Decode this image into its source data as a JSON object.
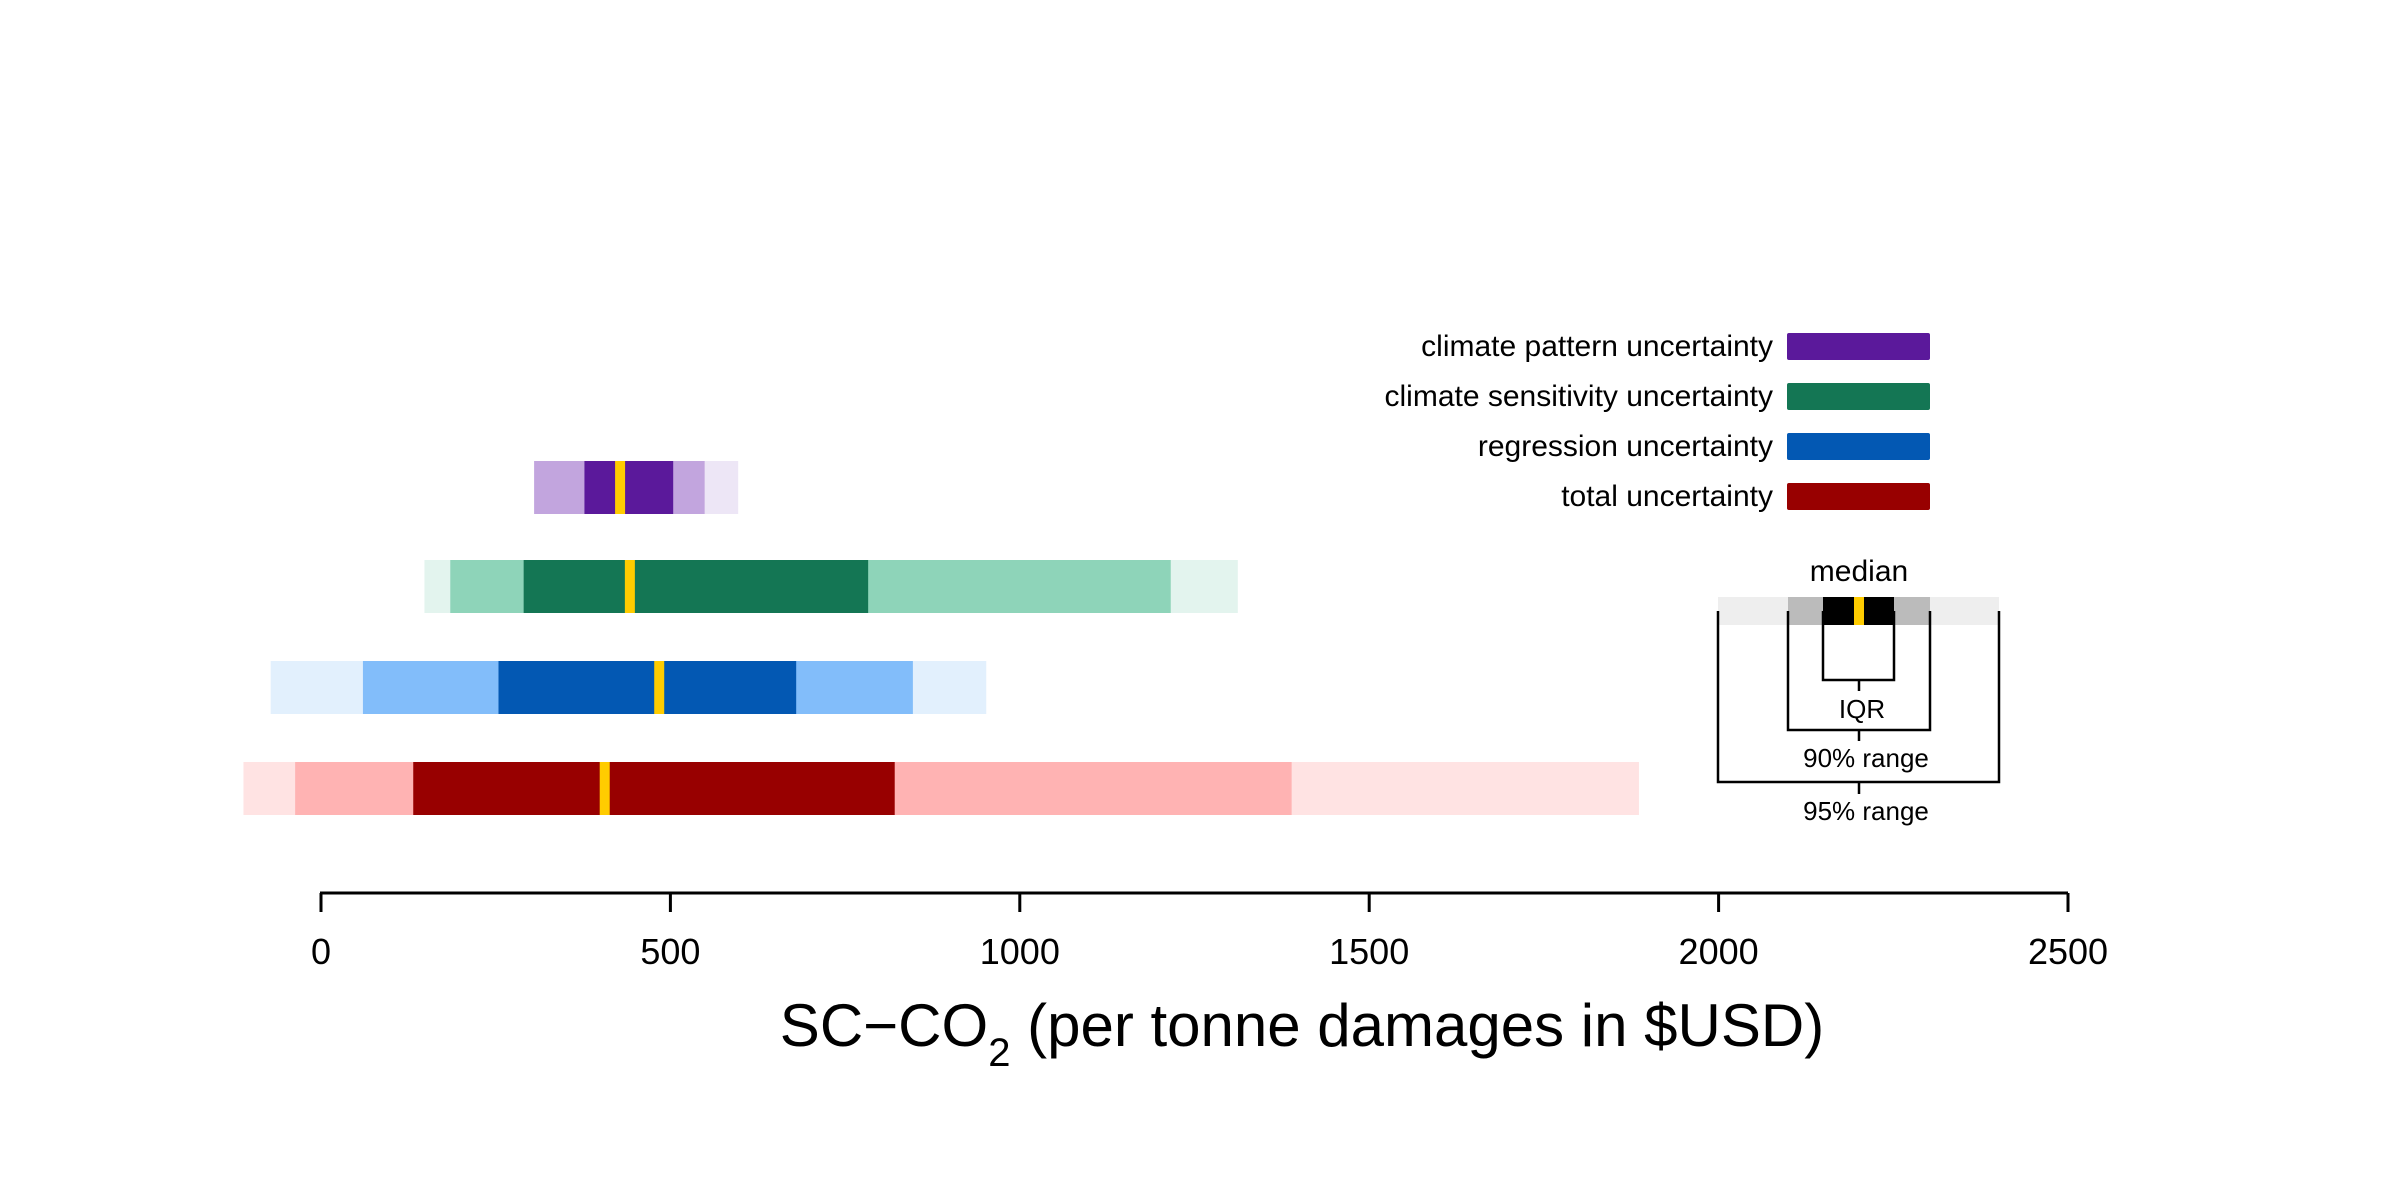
{
  "chart_data": {
    "type": "range-bar",
    "xlabel_main": "SC−CO",
    "xlabel_sub": "2",
    "xlabel_rest": " (per tonne damages in $USD)",
    "xlim": [
      0,
      2500
    ],
    "xticks": [
      0,
      500,
      1000,
      1500,
      2000,
      2500
    ],
    "xtick_labels": [
      "0",
      "500",
      "1000",
      "1500",
      "2000",
      "2500"
    ],
    "grid": false,
    "series": [
      {
        "name": "climate pattern uncertainty",
        "color": "#5b199b",
        "light": "#c2a5de",
        "lightest": "#ede6f6",
        "p025": 305,
        "p05": 305,
        "p25": 377,
        "median": 428,
        "p75": 504,
        "p95": 549,
        "p975": 597
      },
      {
        "name": "climate sensitivity uncertainty",
        "color": "#147654",
        "light": "#8ed4b9",
        "lightest": "#e3f4ee",
        "p025": 148,
        "p05": 185,
        "p25": 290,
        "median": 442,
        "p75": 783,
        "p95": 1216,
        "p975": 1312
      },
      {
        "name": "regression uncertainty",
        "color": "#0358b3",
        "light": "#82bdfa",
        "lightest": "#e2f0fd",
        "p025": -72,
        "p05": 60,
        "p25": 254,
        "median": 484,
        "p75": 680,
        "p95": 847,
        "p975": 952
      },
      {
        "name": "total uncertainty",
        "color": "#980000",
        "light": "#ffb3b3",
        "lightest": "#ffe3e3",
        "p025": -111,
        "p05": -37,
        "p25": 132,
        "median": 406,
        "p75": 821,
        "p95": 1389,
        "p975": 1886
      }
    ],
    "median_color": "#ffcc00",
    "key": {
      "median_label": "median",
      "iqr_label": "IQR",
      "range90_label": "90% range",
      "range95_label": "95% range",
      "colors": {
        "iqr": "#000000",
        "r90": "#bbbbbb",
        "r95": "#eeeeee"
      }
    }
  }
}
